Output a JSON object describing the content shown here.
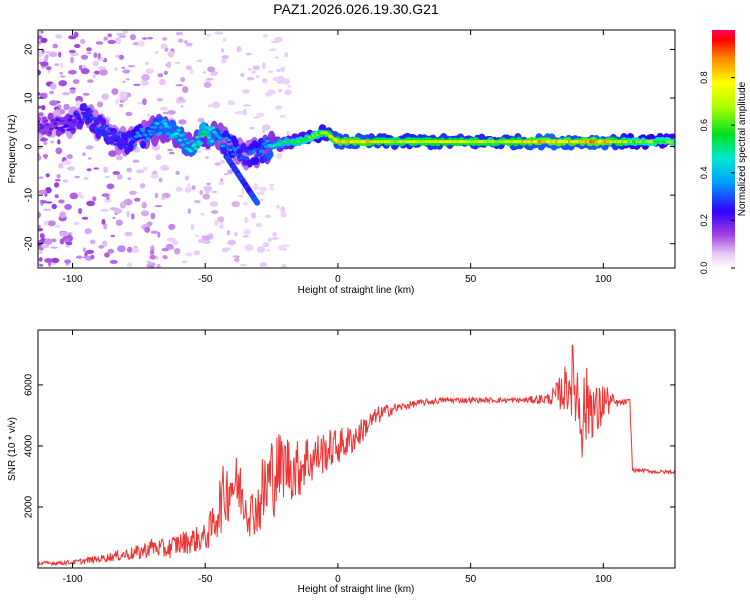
{
  "figure": {
    "title": "PAZ1.2026.026.19.30.G21"
  },
  "chart_data": [
    {
      "type": "heatmap",
      "title": "PAZ1.2026.026.19.30.G21",
      "xlabel": "Height of straight line (km)",
      "ylabel": "Frequency (Hz)",
      "xlim": [
        -113,
        127
      ],
      "ylim": [
        -25,
        24
      ],
      "xticks": [
        -100,
        -50,
        0,
        50,
        100
      ],
      "yticks": [
        -20,
        -10,
        0,
        10,
        20
      ],
      "grid": false,
      "colorbar": {
        "label": "Normalized spectral amplitude",
        "range": [
          0.0,
          1.0
        ],
        "ticks": [
          0.0,
          0.2,
          0.4,
          0.6,
          0.8
        ]
      },
      "ridge": {
        "description": "dominant frequency line (amplitude peak)",
        "x": [
          -110,
          -100,
          -95,
          -90,
          -85,
          -80,
          -75,
          -70,
          -65,
          -60,
          -55,
          -50,
          -45,
          -40,
          -35,
          -30,
          -25,
          -20,
          -15,
          -10,
          -5,
          0,
          10,
          20,
          40,
          60,
          80,
          90,
          100,
          110,
          127
        ],
        "y": [
          4,
          5,
          7,
          4,
          2,
          1,
          2,
          3,
          4,
          2,
          0,
          3,
          2,
          0,
          -2,
          -1,
          0,
          1,
          1,
          2,
          3,
          1,
          1,
          1,
          1,
          1,
          1,
          1,
          1,
          1,
          1
        ],
        "amplitude": [
          0.2,
          0.25,
          0.3,
          0.3,
          0.3,
          0.3,
          0.35,
          0.4,
          0.45,
          0.45,
          0.45,
          0.55,
          0.4,
          0.35,
          0.3,
          0.35,
          0.45,
          0.55,
          0.6,
          0.65,
          0.75,
          0.85,
          0.85,
          0.75,
          0.8,
          0.75,
          0.9,
          0.85,
          0.9,
          0.7,
          0.65
        ]
      }
    },
    {
      "type": "line",
      "title": "",
      "xlabel": "Height of straight line (km)",
      "ylabel": "SNR (10 * v/v)",
      "xlim": [
        -113,
        127
      ],
      "ylim": [
        0,
        7800
      ],
      "xticks": [
        -100,
        -50,
        0,
        50,
        100
      ],
      "yticks": [
        2000,
        4000,
        6000
      ],
      "grid": false,
      "series": [
        {
          "color": "#ee3333",
          "x": [
            -113,
            -100,
            -90,
            -80,
            -75,
            -70,
            -65,
            -60,
            -55,
            -50,
            -47,
            -45,
            -42,
            -40,
            -37,
            -35,
            -33,
            -30,
            -28,
            -25,
            -23,
            -20,
            -18,
            -15,
            -12,
            -10,
            -8,
            -5,
            -3,
            0,
            3,
            5,
            8,
            10,
            15,
            20,
            25,
            30,
            40,
            50,
            60,
            70,
            80,
            85,
            88,
            90,
            92,
            95,
            98,
            100,
            105,
            110,
            111,
            115,
            120,
            127
          ],
          "y": [
            150,
            180,
            300,
            450,
            500,
            700,
            600,
            800,
            900,
            1000,
            1400,
            2000,
            2500,
            2800,
            2600,
            2200,
            1800,
            2000,
            2500,
            3000,
            3200,
            3400,
            3300,
            3200,
            3600,
            3500,
            3700,
            3800,
            3900,
            4000,
            4100,
            4200,
            4400,
            4600,
            5000,
            5200,
            5300,
            5400,
            5500,
            5500,
            5500,
            5500,
            5550,
            5800,
            6200,
            5800,
            5000,
            5500,
            5000,
            5500,
            5400,
            5450,
            3200,
            3200,
            3150,
            3150
          ],
          "noise": [
            60,
            80,
            120,
            200,
            260,
            300,
            330,
            380,
            420,
            450,
            700,
            1000,
            1100,
            1100,
            1000,
            900,
            800,
            900,
            1500,
            1500,
            1300,
            1100,
            1100,
            1000,
            900,
            800,
            750,
            700,
            650,
            600,
            550,
            500,
            450,
            400,
            300,
            200,
            130,
            110,
            90,
            90,
            90,
            90,
            200,
            700,
            1200,
            1500,
            1500,
            1200,
            900,
            700,
            120,
            100,
            60,
            60,
            60,
            60
          ]
        }
      ]
    }
  ]
}
